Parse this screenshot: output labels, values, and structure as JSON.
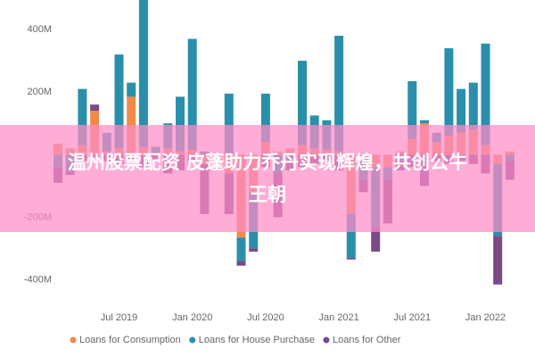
{
  "chart_data": {
    "type": "stacked_bar",
    "categories": [
      null,
      null,
      null,
      null,
      null,
      "Jul 2019",
      null,
      null,
      null,
      null,
      null,
      "Jan 2020",
      null,
      null,
      null,
      null,
      null,
      "Jul 2020",
      null,
      null,
      null,
      null,
      null,
      "Jan 2021",
      null,
      null,
      null,
      null,
      null,
      "Jul 2021",
      null,
      null,
      null,
      null,
      null,
      "Jan 2022",
      null,
      null
    ],
    "series": [
      {
        "name": "Loans for Consumption",
        "color": "#f08a4b",
        "values": [
          35,
          20,
          30,
          140,
          10,
          20,
          185,
          25,
          5,
          20,
          10,
          15,
          -30,
          -20,
          -60,
          -265,
          -120,
          40,
          10,
          20,
          30,
          20,
          15,
          10,
          -190,
          -20,
          -40,
          -40,
          10,
          50,
          100,
          40,
          60,
          70,
          80,
          30,
          -30,
          10
        ]
      },
      {
        "name": "Loans for House Purchase",
        "color": "#2a8fab",
        "values": [
          -40,
          -55,
          180,
          -10,
          60,
          300,
          45,
          470,
          20,
          80,
          175,
          355,
          10,
          -10,
          195,
          -75,
          -180,
          155,
          -60,
          -20,
          270,
          105,
          95,
          370,
          -140,
          -60,
          -190,
          -40,
          -20,
          185,
          10,
          30,
          280,
          140,
          150,
          325,
          -230,
          -20
        ]
      },
      {
        "name": "Loans for Other",
        "color": "#7a4a86",
        "values": [
          -50,
          -10,
          -20,
          20,
          -20,
          -30,
          -20,
          -40,
          -15,
          -60,
          -50,
          -20,
          -160,
          -20,
          -130,
          -15,
          -10,
          -40,
          -140,
          -30,
          -40,
          -30,
          -20,
          -50,
          -5,
          -40,
          -80,
          -140,
          -30,
          -40,
          -100,
          -20,
          -30,
          -20,
          -30,
          -60,
          -155,
          -60
        ]
      }
    ],
    "ylim": [
      -450,
      480
    ],
    "yticks": [
      {
        "value": -400,
        "label": "-400M"
      },
      {
        "value": -200,
        "label": "-200M"
      },
      {
        "value": 200,
        "label": "200M"
      },
      {
        "value": 400,
        "label": "400M"
      }
    ],
    "legend": "bottom"
  },
  "banner": {
    "lines": [
      "温州股票配资 皮蓬助力乔丹实现辉煌，共创公牛",
      "王朝"
    ]
  }
}
